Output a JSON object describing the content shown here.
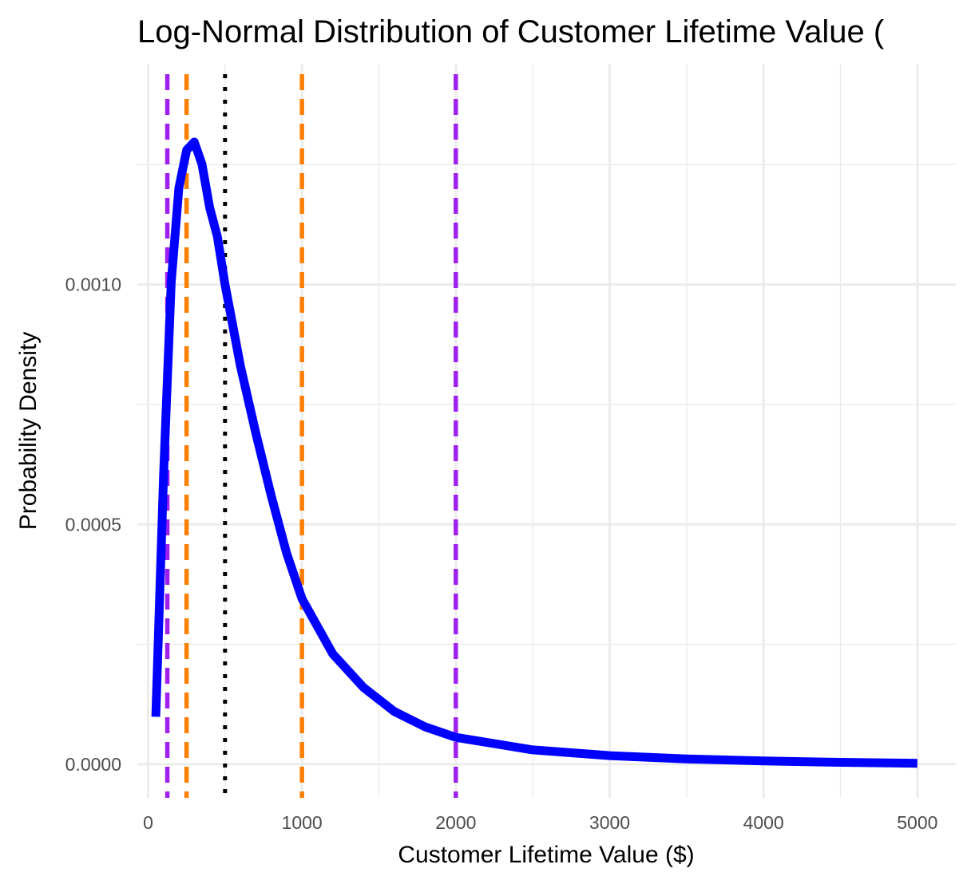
{
  "chart_data": {
    "type": "line",
    "title": "Log-Normal Distribution of Customer Lifetime Value (",
    "xlabel": "Customer Lifetime Value ($)",
    "ylabel": "Probability Density",
    "xlim": [
      -70,
      5250
    ],
    "ylim": [
      -7e-05,
      0.00146
    ],
    "x_ticks": [
      0,
      1000,
      2000,
      3000,
      4000,
      5000
    ],
    "x_tick_labels": [
      "0",
      "1000",
      "2000",
      "3000",
      "4000",
      "5000"
    ],
    "x_minor_ticks": [
      500,
      1500,
      2500,
      3500,
      4500
    ],
    "y_ticks": [
      0,
      0.0005,
      0.001
    ],
    "y_tick_labels": [
      "0.0000",
      "0.0005",
      "0.0010"
    ],
    "y_minor_ticks": [
      0.00025,
      0.00075,
      0.00125
    ],
    "grid": true,
    "series": [
      {
        "color": "#0000ff",
        "x": [
          50,
          100,
          150,
          200,
          250,
          300,
          350,
          400,
          450,
          500,
          600,
          700,
          800,
          900,
          1000,
          1200,
          1400,
          1600,
          1800,
          2000,
          2500,
          3000,
          3500,
          4000,
          4500,
          5000
        ],
        "y": [
          9.9e-05,
          0.000601,
          0.001004,
          0.001201,
          0.00128,
          0.001297,
          0.001251,
          0.00116,
          0.0011,
          0.001,
          0.00083,
          0.00069,
          0.00056,
          0.00044,
          0.000345,
          0.00023,
          0.00016,
          0.00011,
          7.8e-05,
          5.6e-05,
          3e-05,
          1.8e-05,
          1.1e-05,
          7e-06,
          4e-06,
          2e-06
        ]
      }
    ],
    "reference_lines": [
      {
        "x": 125,
        "color": "#a020f0",
        "style": "dashed"
      },
      {
        "x": 2000,
        "color": "#a020f0",
        "style": "dashed"
      },
      {
        "x": 250,
        "color": "#ff7f00",
        "style": "dashed"
      },
      {
        "x": 1000,
        "color": "#ff7f00",
        "style": "dashed"
      },
      {
        "x": 500,
        "color": "#000000",
        "style": "dotted"
      }
    ],
    "colors": {
      "grid": "#ebebeb",
      "background": "#ffffff"
    }
  }
}
